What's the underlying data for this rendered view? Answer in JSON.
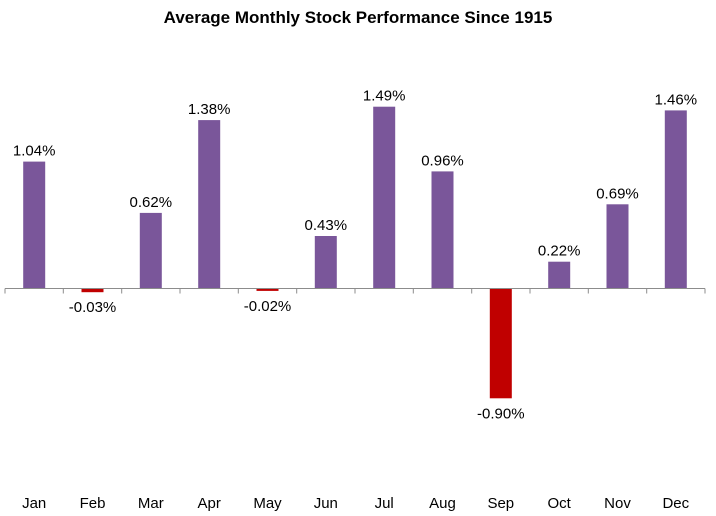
{
  "chart_data": {
    "type": "bar",
    "title": "Average Monthly Stock Performance Since 1915",
    "xlabel": "",
    "ylabel": "",
    "categories": [
      "Jan",
      "Feb",
      "Mar",
      "Apr",
      "May",
      "Jun",
      "Jul",
      "Aug",
      "Sep",
      "Oct",
      "Nov",
      "Dec"
    ],
    "values": [
      1.04,
      -0.03,
      0.62,
      1.38,
      -0.02,
      0.43,
      1.49,
      0.96,
      -0.9,
      0.22,
      0.69,
      1.46
    ],
    "value_labels": [
      "1.04%",
      "-0.03%",
      "0.62%",
      "1.38%",
      "-0.02%",
      "0.43%",
      "1.49%",
      "0.96%",
      "-0.90%",
      "0.22%",
      "0.69%",
      "1.46%"
    ],
    "ylim": [
      -1.0,
      1.6
    ],
    "grid": false,
    "legend": "none",
    "colors": {
      "positive": "#7a569a",
      "negative": "#c00000",
      "axis": "#8c8c8c"
    }
  }
}
